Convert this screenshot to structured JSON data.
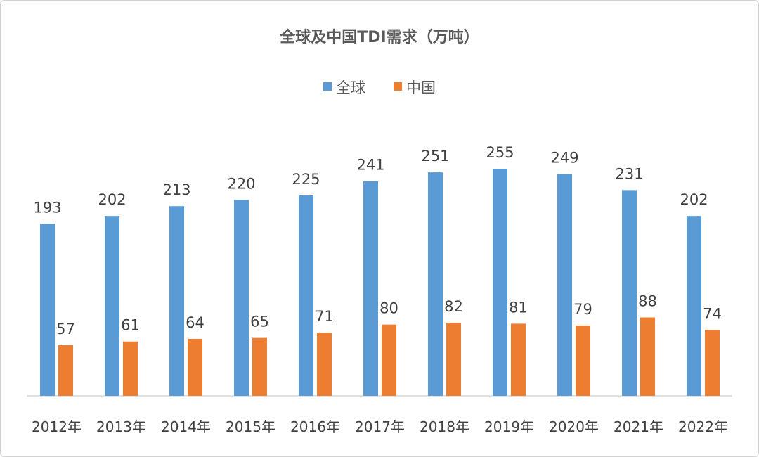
{
  "chart_data": {
    "type": "bar",
    "title": "全球及中国TDI需求（万吨）",
    "xlabel": "",
    "ylabel": "",
    "categories": [
      "2012年",
      "2013年",
      "2014年",
      "2015年",
      "2016年",
      "2017年",
      "2018年",
      "2019年",
      "2020年",
      "2021年",
      "2022年"
    ],
    "series": [
      {
        "name": "全球",
        "color": "#5b9bd5",
        "values": [
          193,
          202,
          213,
          220,
          225,
          241,
          251,
          255,
          249,
          231,
          202
        ]
      },
      {
        "name": "中国",
        "color": "#ed7d31",
        "values": [
          57,
          61,
          64,
          65,
          71,
          80,
          82,
          81,
          79,
          88,
          74
        ]
      }
    ],
    "ylim": [
      0,
      255
    ],
    "grid": false,
    "legend": "top-center",
    "data_labels": true
  }
}
